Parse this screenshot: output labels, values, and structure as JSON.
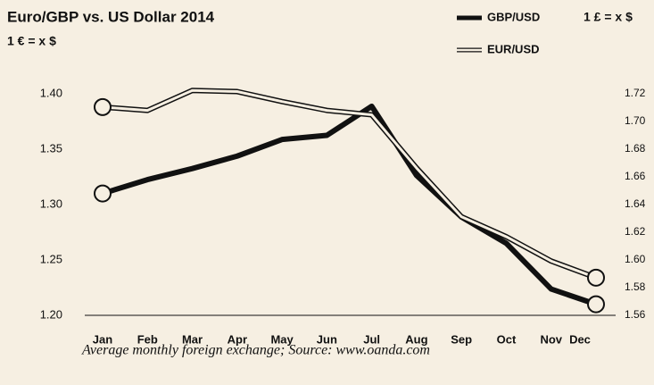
{
  "chart_data": {
    "type": "line",
    "title": "Euro/GBP vs. US Dollar 2014",
    "y_label": "1 € = x $",
    "y2_label": "1 £ = x $",
    "caption": "Average monthly foreign exchange; Source: www.oanda.com",
    "categories": [
      "Jan",
      "Feb",
      "Mar",
      "Apr",
      "May",
      "Jun",
      "Jul",
      "Aug",
      "Sep",
      "Oct",
      "Nov",
      "Dec"
    ],
    "series": [
      {
        "name": "GBP/USD",
        "color": "#111111",
        "axis": "y2",
        "values": [
          1.648,
          1.658,
          1.666,
          1.675,
          1.687,
          1.69,
          1.711,
          1.661,
          1.631,
          1.612,
          1.579,
          1.568
        ]
      },
      {
        "name": "EUR/USD",
        "color": "#111111",
        "values": [
          1.388,
          1.385,
          1.403,
          1.402,
          1.393,
          1.385,
          1.381,
          1.333,
          1.289,
          1.271,
          1.249,
          1.234
        ]
      }
    ],
    "ylim": [
      1.2,
      1.4
    ],
    "yticks": [
      {
        "value": 1.2,
        "label": "1.20"
      },
      1.25,
      {
        "value": 1.3,
        "label": "1.30"
      },
      1.35,
      {
        "value": 1.4,
        "label": "1.40"
      }
    ],
    "y2lim": [
      1.56,
      1.72
    ],
    "y2ticks": [
      1.56,
      1.58,
      {
        "value": 1.6,
        "label": "1.60"
      },
      1.62,
      1.64,
      1.66,
      1.68,
      {
        "value": 1.7,
        "label": "1.70"
      },
      1.72
    ]
  }
}
